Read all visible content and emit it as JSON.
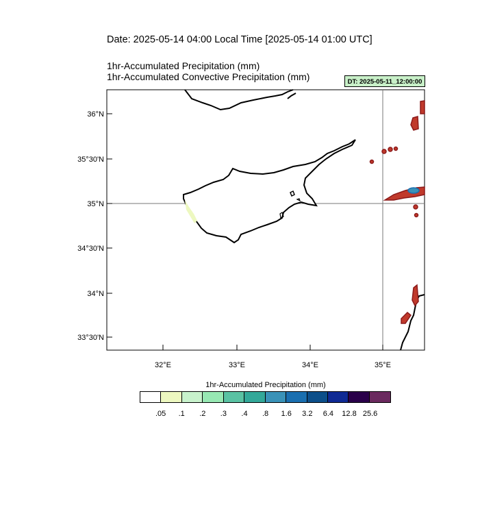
{
  "header": {
    "date_line": "Date: 2025-05-14  04:00 Local Time [2025-05-14  01:00 UTC]",
    "title_lines": [
      "1hr-Accumulated Precipitation   (mm)",
      "1hr-Accumulated Convective Precipitation   (mm)"
    ],
    "dt_badge": "DT: 2025-05-11_12:00:00",
    "dt_badge_color": "#c8f0c8"
  },
  "map": {
    "lat_labels": [
      "36°N",
      "35°30'N",
      "35°N",
      "34°30'N",
      "34°N",
      "33°30'N"
    ],
    "lon_labels": [
      "32°E",
      "33°E",
      "34°E",
      "35°E"
    ],
    "reference_lines": {
      "lat": "35°N",
      "lon": "35°E"
    }
  },
  "colorbar": {
    "title": "1hr-Accumulated Precipitation  (mm)",
    "colors": [
      "#ffffff",
      "#edf8c0",
      "#c8f2cc",
      "#97e8b3",
      "#5ac2a3",
      "#33a899",
      "#3a92b8",
      "#1a6fb0",
      "#0c4f8a",
      "#0f2a94",
      "#2a004a",
      "#6b2a5f"
    ],
    "labels": [
      ".05",
      ".1",
      ".2",
      ".3",
      ".4",
      ".8",
      "1.6",
      "3.2",
      "6.4",
      "12.8",
      "25.6"
    ]
  }
}
